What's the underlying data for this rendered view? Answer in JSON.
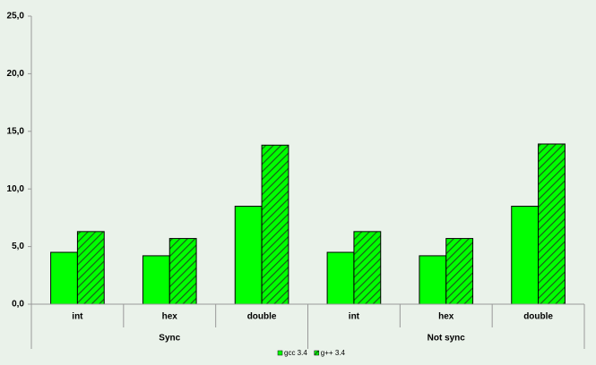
{
  "chart_data": {
    "type": "bar",
    "categories": [
      "int",
      "hex",
      "double",
      "int",
      "hex",
      "double"
    ],
    "groups": [
      "Sync",
      "Not sync"
    ],
    "series": [
      {
        "name": "gcc 3.4",
        "color": "#00ff00",
        "values": [
          4.5,
          4.2,
          8.5,
          4.5,
          4.2,
          8.5
        ]
      },
      {
        "name": "g++ 3.4",
        "color": "#00ff00",
        "pattern": "hatch",
        "values": [
          6.3,
          5.7,
          13.8,
          6.3,
          5.7,
          13.9
        ]
      }
    ],
    "ylim": [
      0,
      25
    ],
    "yticks": [
      {
        "value": 0,
        "label": "0,0"
      },
      {
        "value": 5,
        "label": "5,0"
      },
      {
        "value": 10,
        "label": "10,0"
      },
      {
        "value": 15,
        "label": "15,0"
      },
      {
        "value": 20,
        "label": "20,0"
      },
      {
        "value": 25,
        "label": "25,0"
      }
    ],
    "legend": "bottom"
  }
}
